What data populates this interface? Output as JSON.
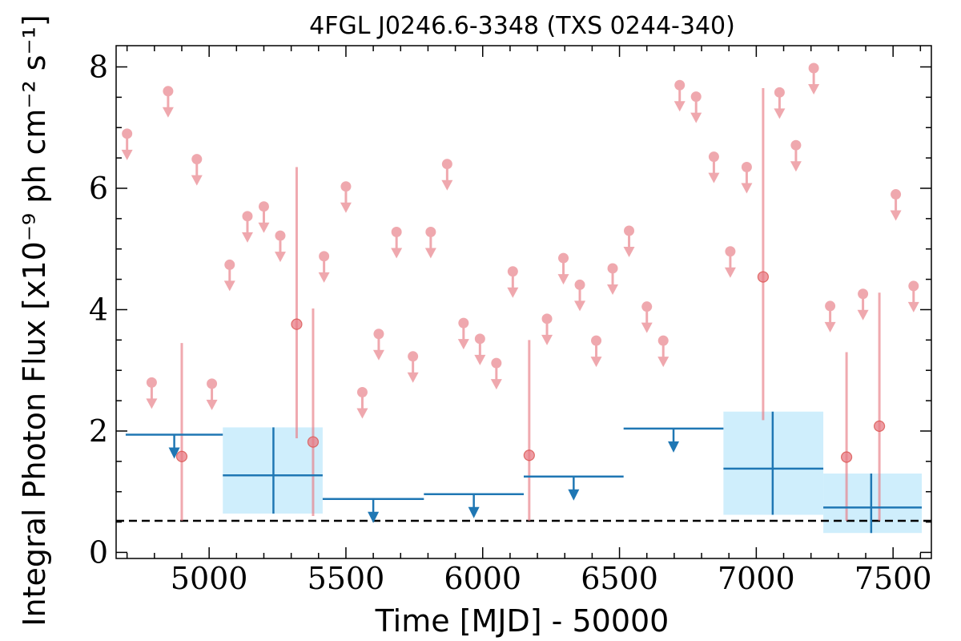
{
  "chart_data": {
    "type": "scatter",
    "title": "4FGL J0246.6-3348 (TXS 0244-340)",
    "xlabel": "Time [MJD] - 50000",
    "ylabel": "Integral Photon Flux [x10⁻⁹ ph cm⁻² s⁻¹]",
    "xlim": [
      4660,
      7640
    ],
    "ylim": [
      -0.1,
      8.35
    ],
    "x_ticks": [
      5000,
      5500,
      6000,
      6500,
      7000,
      7500
    ],
    "x_tick_labels": [
      "5000",
      "5500",
      "6000",
      "6500",
      "7000",
      "7500"
    ],
    "y_ticks": [
      0,
      2,
      4,
      6,
      8
    ],
    "y_tick_labels": [
      "0",
      "2",
      "4",
      "6",
      "8"
    ],
    "reference_line": {
      "y": 0.52,
      "style": "dashed",
      "color": "#000000"
    },
    "colors": {
      "short_bins": "#e87b84",
      "long_bins": "#1f77b4",
      "long_bins_band": "#cfeefc"
    },
    "short_bins_upper_limits": [
      {
        "x": 4700,
        "y": 6.9
      },
      {
        "x": 4790,
        "y": 2.8
      },
      {
        "x": 4850,
        "y": 7.6
      },
      {
        "x": 4955,
        "y": 6.48
      },
      {
        "x": 5010,
        "y": 2.78
      },
      {
        "x": 5075,
        "y": 4.74
      },
      {
        "x": 5140,
        "y": 5.54
      },
      {
        "x": 5200,
        "y": 5.7
      },
      {
        "x": 5260,
        "y": 5.22
      },
      {
        "x": 5420,
        "y": 4.88
      },
      {
        "x": 5500,
        "y": 6.03
      },
      {
        "x": 5560,
        "y": 2.64
      },
      {
        "x": 5620,
        "y": 3.6
      },
      {
        "x": 5685,
        "y": 5.28
      },
      {
        "x": 5745,
        "y": 3.23
      },
      {
        "x": 5810,
        "y": 5.28
      },
      {
        "x": 5870,
        "y": 6.4
      },
      {
        "x": 5930,
        "y": 3.78
      },
      {
        "x": 5990,
        "y": 3.52
      },
      {
        "x": 6050,
        "y": 3.12
      },
      {
        "x": 6110,
        "y": 4.63
      },
      {
        "x": 6235,
        "y": 3.85
      },
      {
        "x": 6295,
        "y": 4.85
      },
      {
        "x": 6355,
        "y": 4.41
      },
      {
        "x": 6415,
        "y": 3.49
      },
      {
        "x": 6475,
        "y": 4.68
      },
      {
        "x": 6535,
        "y": 5.3
      },
      {
        "x": 6600,
        "y": 4.05
      },
      {
        "x": 6660,
        "y": 3.49
      },
      {
        "x": 6720,
        "y": 7.7
      },
      {
        "x": 6780,
        "y": 7.51
      },
      {
        "x": 6845,
        "y": 6.52
      },
      {
        "x": 6905,
        "y": 4.96
      },
      {
        "x": 6965,
        "y": 6.35
      },
      {
        "x": 7085,
        "y": 7.58
      },
      {
        "x": 7145,
        "y": 6.71
      },
      {
        "x": 7210,
        "y": 7.98
      },
      {
        "x": 7270,
        "y": 4.06
      },
      {
        "x": 7390,
        "y": 4.26
      },
      {
        "x": 7510,
        "y": 5.9
      },
      {
        "x": 7575,
        "y": 4.39
      }
    ],
    "short_bins_detections": [
      {
        "x": 4900,
        "y": 1.58,
        "y_low": 0.52,
        "y_high": 3.45
      },
      {
        "x": 5320,
        "y": 3.76,
        "y_low": 1.88,
        "y_high": 6.35
      },
      {
        "x": 5380,
        "y": 1.82,
        "y_low": 0.6,
        "y_high": 4.02
      },
      {
        "x": 6170,
        "y": 1.6,
        "y_low": 0.52,
        "y_high": 3.5
      },
      {
        "x": 7025,
        "y": 4.54,
        "y_low": 2.18,
        "y_high": 7.65
      },
      {
        "x": 7330,
        "y": 1.57,
        "y_low": 0.52,
        "y_high": 3.3
      },
      {
        "x": 7450,
        "y": 2.08,
        "y_low": 0.52,
        "y_high": 4.28
      }
    ],
    "long_bins_upper_limits": [
      {
        "x_start": 4695,
        "x_end": 5050,
        "y": 1.94
      },
      {
        "x_start": 5415,
        "x_end": 5785,
        "y": 0.88
      },
      {
        "x_start": 5785,
        "x_end": 6150,
        "y": 0.96
      },
      {
        "x_start": 6150,
        "x_end": 6515,
        "y": 1.25
      },
      {
        "x_start": 6515,
        "x_end": 6880,
        "y": 2.04
      }
    ],
    "long_bins_detections": [
      {
        "x": 5235,
        "x_start": 5050,
        "x_end": 5415,
        "y": 1.27,
        "y_low": 0.64,
        "y_high": 2.06
      },
      {
        "x": 7060,
        "x_start": 6880,
        "x_end": 7245,
        "y": 1.38,
        "y_low": 0.62,
        "y_high": 2.32
      },
      {
        "x": 7420,
        "x_start": 7245,
        "x_end": 7605,
        "y": 0.74,
        "y_low": 0.32,
        "y_high": 1.3
      }
    ]
  }
}
